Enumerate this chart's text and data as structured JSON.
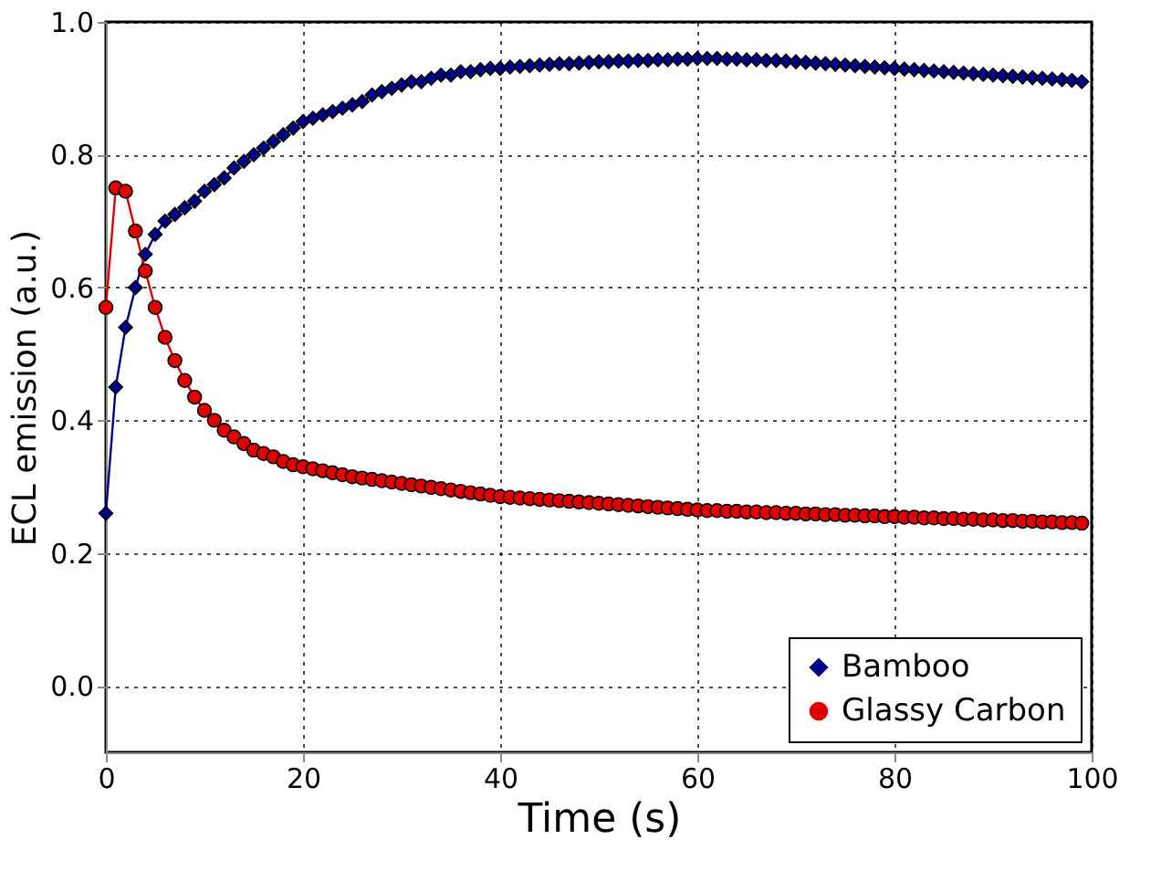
{
  "chart_data": {
    "type": "line",
    "xlabel": "Time (s)",
    "ylabel": "ECL emission (a.u.)",
    "xlim": [
      0,
      100
    ],
    "ylim": [
      -0.1,
      1.0
    ],
    "xticks": [
      0,
      20,
      40,
      60,
      80,
      100
    ],
    "yticks": [
      {
        "value": 0,
        "label": "0.0"
      },
      0.2,
      0.4,
      0.6,
      0.8,
      {
        "value": 1,
        "label": "1.0"
      }
    ],
    "grid": true,
    "legend": "bottom right",
    "line_style": "solid",
    "x": [
      0,
      1,
      2,
      3,
      4,
      5,
      6,
      7,
      8,
      9,
      10,
      11,
      12,
      13,
      14,
      15,
      16,
      17,
      18,
      19,
      20,
      21,
      22,
      23,
      24,
      25,
      26,
      27,
      28,
      29,
      30,
      31,
      32,
      33,
      34,
      35,
      36,
      37,
      38,
      39,
      40,
      41,
      42,
      43,
      44,
      45,
      46,
      47,
      48,
      49,
      50,
      51,
      52,
      53,
      54,
      55,
      56,
      57,
      58,
      59,
      60,
      61,
      62,
      63,
      64,
      65,
      66,
      67,
      68,
      69,
      70,
      71,
      72,
      73,
      74,
      75,
      76,
      77,
      78,
      79,
      80,
      81,
      82,
      83,
      84,
      85,
      86,
      87,
      88,
      89,
      90,
      91,
      92,
      93,
      94,
      95,
      96,
      97,
      98,
      99
    ],
    "series": [
      {
        "name": "Bamboo",
        "color": "#00008b",
        "marker": "diamond",
        "values": [
          0.26,
          0.45,
          0.54,
          0.6,
          0.65,
          0.68,
          0.7,
          0.71,
          0.72,
          0.73,
          0.745,
          0.755,
          0.765,
          0.78,
          0.79,
          0.8,
          0.81,
          0.82,
          0.83,
          0.84,
          0.85,
          0.855,
          0.86,
          0.865,
          0.87,
          0.875,
          0.88,
          0.89,
          0.895,
          0.9,
          0.905,
          0.91,
          0.91,
          0.915,
          0.92,
          0.92,
          0.925,
          0.925,
          0.928,
          0.93,
          0.93,
          0.932,
          0.933,
          0.934,
          0.935,
          0.936,
          0.937,
          0.937,
          0.938,
          0.939,
          0.94,
          0.94,
          0.941,
          0.941,
          0.942,
          0.942,
          0.943,
          0.943,
          0.944,
          0.944,
          0.945,
          0.945,
          0.945,
          0.944,
          0.944,
          0.943,
          0.943,
          0.942,
          0.942,
          0.941,
          0.94,
          0.939,
          0.938,
          0.937,
          0.936,
          0.935,
          0.934,
          0.933,
          0.932,
          0.931,
          0.93,
          0.929,
          0.928,
          0.927,
          0.926,
          0.925,
          0.924,
          0.923,
          0.922,
          0.921,
          0.92,
          0.919,
          0.918,
          0.917,
          0.916,
          0.915,
          0.914,
          0.913,
          0.912,
          0.91
        ]
      },
      {
        "name": "Glassy Carbon",
        "color": "#e00000",
        "marker": "circle",
        "values": [
          0.57,
          0.75,
          0.745,
          0.685,
          0.625,
          0.57,
          0.525,
          0.49,
          0.46,
          0.435,
          0.415,
          0.4,
          0.385,
          0.375,
          0.365,
          0.355,
          0.35,
          0.345,
          0.338,
          0.333,
          0.33,
          0.327,
          0.324,
          0.321,
          0.318,
          0.315,
          0.313,
          0.311,
          0.309,
          0.307,
          0.305,
          0.303,
          0.301,
          0.299,
          0.297,
          0.295,
          0.293,
          0.291,
          0.289,
          0.287,
          0.285,
          0.284,
          0.283,
          0.282,
          0.281,
          0.28,
          0.279,
          0.278,
          0.277,
          0.276,
          0.275,
          0.274,
          0.273,
          0.272,
          0.271,
          0.27,
          0.269,
          0.268,
          0.267,
          0.266,
          0.265,
          0.264,
          0.264,
          0.263,
          0.263,
          0.262,
          0.262,
          0.261,
          0.261,
          0.26,
          0.26,
          0.259,
          0.259,
          0.258,
          0.258,
          0.257,
          0.257,
          0.256,
          0.256,
          0.255,
          0.255,
          0.254,
          0.254,
          0.253,
          0.253,
          0.252,
          0.252,
          0.251,
          0.251,
          0.25,
          0.25,
          0.249,
          0.249,
          0.248,
          0.248,
          0.247,
          0.247,
          0.246,
          0.246,
          0.245
        ]
      }
    ]
  }
}
